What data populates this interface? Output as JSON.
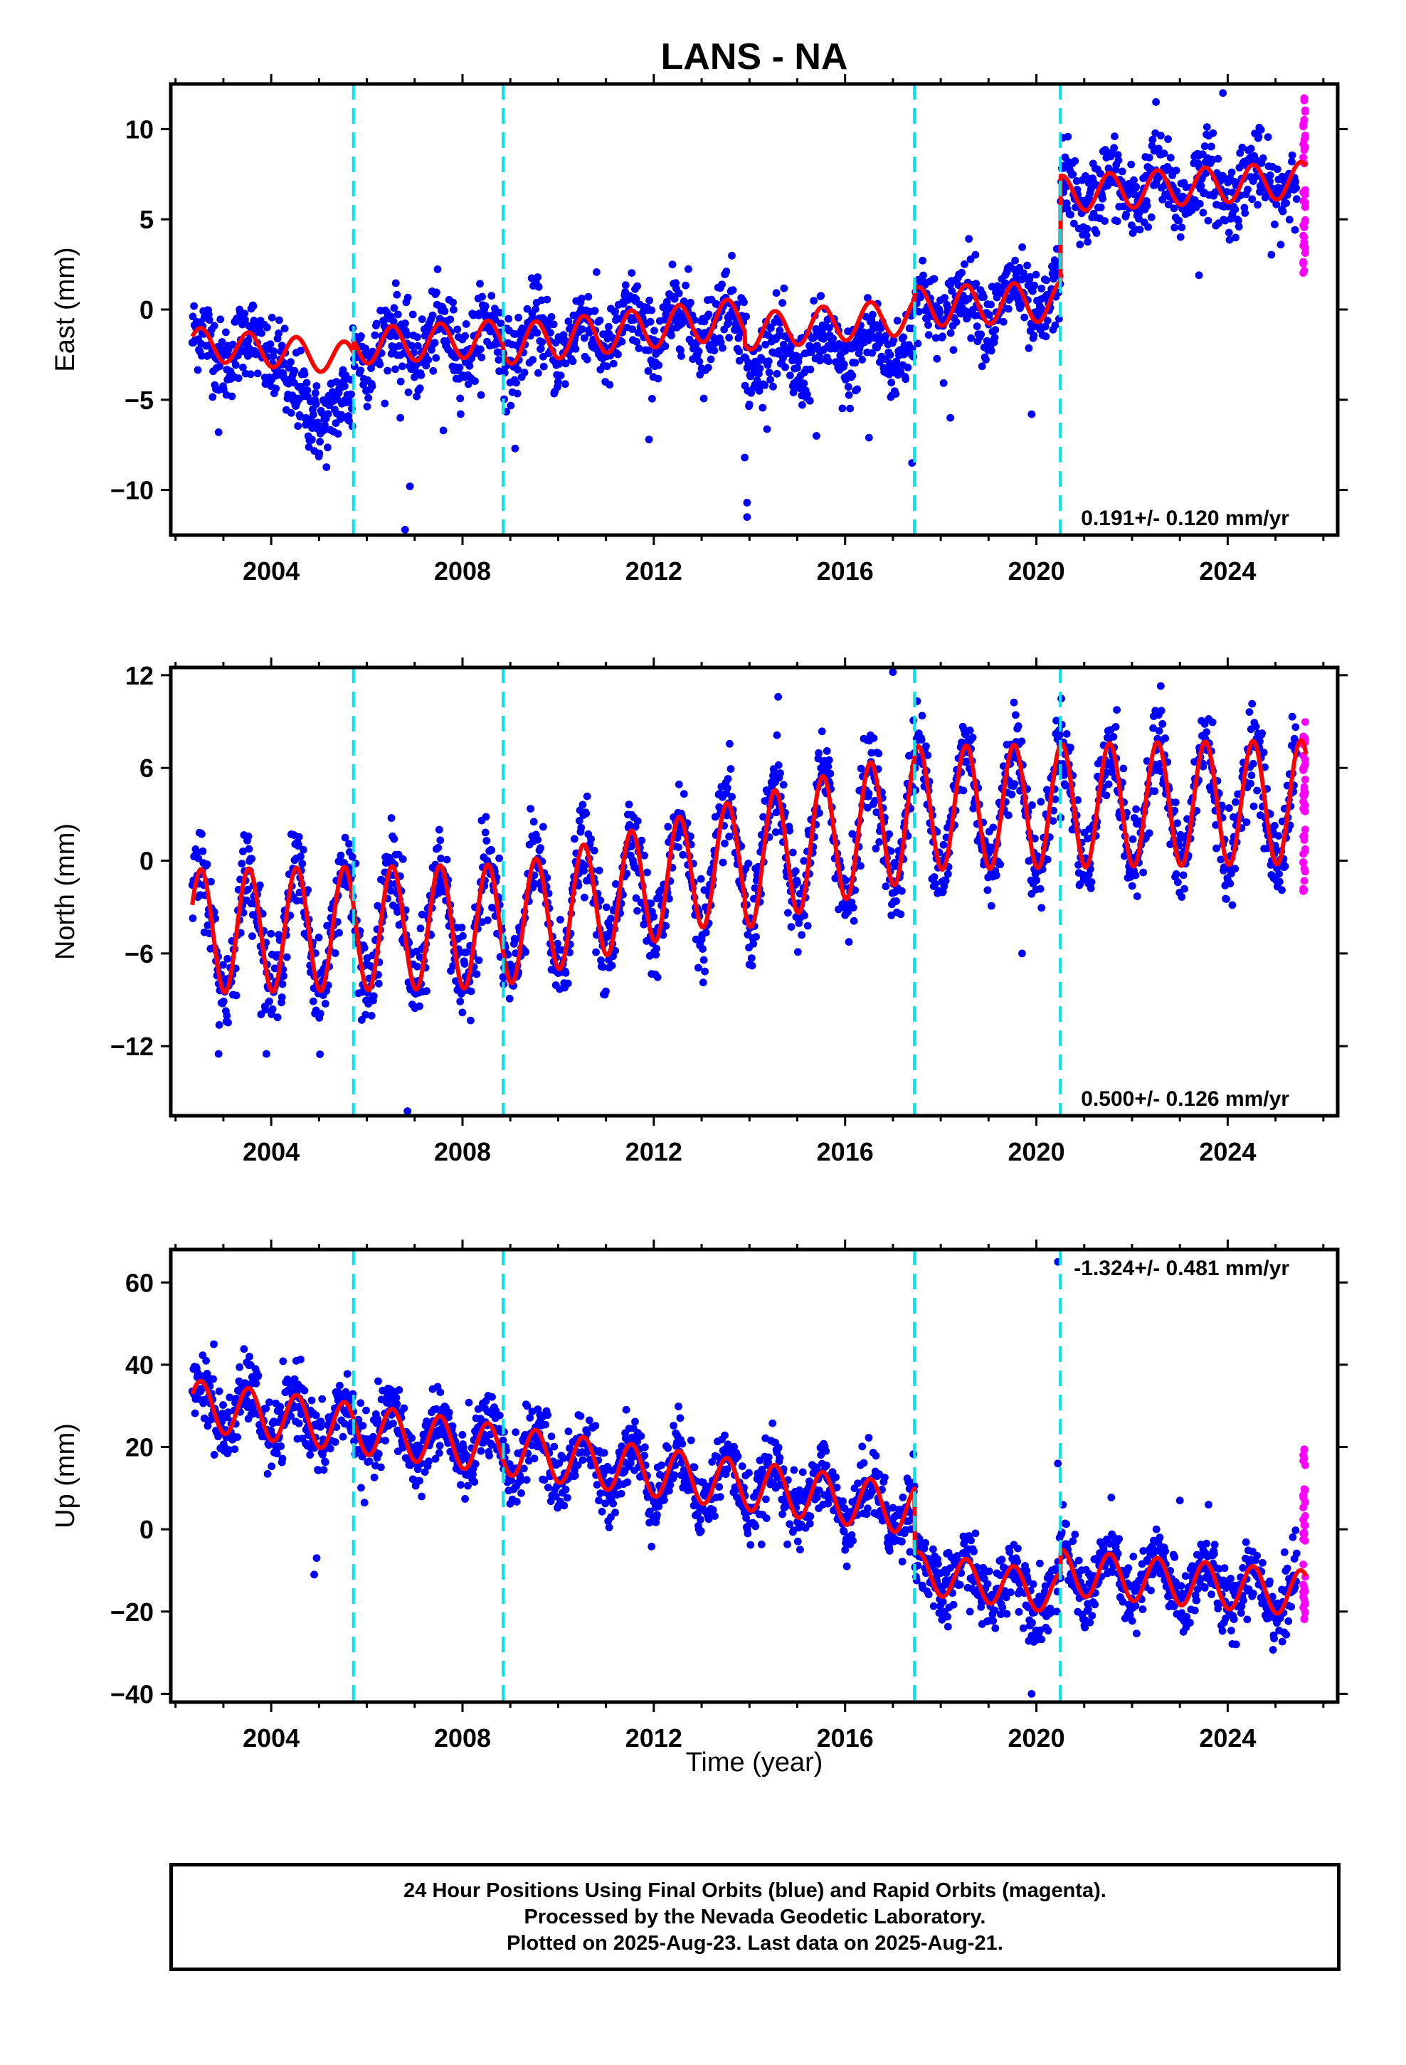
{
  "chart_data": {
    "title": "LANS - NA",
    "x_range": [
      2001.9,
      2026.3
    ],
    "x_ticks": [
      2004,
      2008,
      2012,
      2016,
      2020,
      2024
    ],
    "xlabel": "Time (year)",
    "offsets": [
      2005.72,
      2008.85,
      2017.45,
      2020.5
    ],
    "last_final": 2025.45,
    "last_data": 2025.64,
    "colors": {
      "final": "#0000ff",
      "rapid": "#ff00ff",
      "model": "#ff0000",
      "offset_line": "#00e5ee"
    },
    "panels": [
      {
        "type": "scatter",
        "name": "east",
        "ylabel": "East (mm)",
        "ylim": [
          -12.5,
          12.5
        ],
        "yticks": [
          10,
          5,
          0,
          -5,
          -10
        ],
        "rate": "0.191+/- 0.120 mm/yr",
        "rate_pos": "bottom-right",
        "noise": 1.1,
        "rapid_range": [
          1.8,
          12
        ],
        "segments": [
          {
            "start": 2002.35,
            "end": 2005.72,
            "level": -2.3,
            "slope": -0.25,
            "amp": 0.9
          },
          {
            "start": 2005.72,
            "end": 2008.85,
            "level": -1.8,
            "slope": 0.15,
            "amp": 1.0
          },
          {
            "start": 2008.85,
            "end": 2013.9,
            "level": -1.2,
            "slope": 0.3,
            "amp": 1.1
          },
          {
            "start": 2013.9,
            "end": 2017.45,
            "level": -0.8,
            "slope": 0.25,
            "amp": 1.0
          },
          {
            "start": 2017.45,
            "end": 2020.5,
            "level": 0.3,
            "slope": 0.1,
            "amp": 1.1
          },
          {
            "start": 2020.5,
            "end": 2025.64,
            "level": 6.8,
            "slope": 0.15,
            "amp": 1.0
          }
        ],
        "dips": [
          {
            "start": 2004.3,
            "end": 2005.7,
            "depth": -3.0
          },
          {
            "start": 2013.95,
            "end": 2017.45,
            "depth": -1.6
          }
        ],
        "outliers": [
          [
            2002.9,
            -6.8
          ],
          [
            2004.85,
            -7.2
          ],
          [
            2006.7,
            -6.0
          ],
          [
            2006.8,
            -12.2
          ],
          [
            2006.9,
            -9.8
          ],
          [
            2007.6,
            -6.7
          ],
          [
            2009.1,
            -7.7
          ],
          [
            2011.9,
            -7.2
          ],
          [
            2013.9,
            -8.2
          ],
          [
            2013.95,
            -11.5
          ],
          [
            2013.95,
            -10.7
          ],
          [
            2015.4,
            -7.0
          ],
          [
            2016.5,
            -7.1
          ],
          [
            2017.4,
            -8.5
          ],
          [
            2018.2,
            -6.0
          ],
          [
            2019.9,
            -5.8
          ],
          [
            2023.4,
            1.9
          ],
          [
            2023.9,
            12.0
          ],
          [
            2022.5,
            11.5
          ]
        ]
      },
      {
        "type": "scatter",
        "name": "north",
        "ylabel": "North (mm)",
        "ylim": [
          -16.5,
          12.5
        ],
        "yticks": [
          12,
          6,
          0,
          -6,
          -12
        ],
        "rate": "0.500+/- 0.126 mm/yr",
        "rate_pos": "bottom-right",
        "noise": 1.4,
        "rapid_range": [
          -2,
          9
        ],
        "segments": [
          {
            "start": 2002.35,
            "end": 2008.85,
            "level": -4.4,
            "slope": 0.05,
            "amp": 4.0
          },
          {
            "start": 2008.85,
            "end": 2013.9,
            "level": -2.0,
            "slope": 0.9,
            "amp": 3.8
          },
          {
            "start": 2013.9,
            "end": 2017.45,
            "level": 1.4,
            "slope": 0.9,
            "amp": 4.2
          },
          {
            "start": 2017.45,
            "end": 2025.64,
            "level": 3.6,
            "slope": 0.05,
            "amp": 4.0
          }
        ],
        "dips": [],
        "outliers": [
          [
            2002.9,
            -12.5
          ],
          [
            2003.9,
            -12.5
          ],
          [
            2006.85,
            -16.2
          ],
          [
            2019.7,
            -6.0
          ],
          [
            2017.0,
            12.2
          ],
          [
            2014.6,
            10.6
          ],
          [
            2022.6,
            11.3
          ],
          [
            2008.4,
            2.6
          ]
        ]
      },
      {
        "type": "scatter",
        "name": "up",
        "ylabel": "Up (mm)",
        "ylim": [
          -42,
          68
        ],
        "yticks": [
          60,
          40,
          20,
          0,
          -20,
          -40
        ],
        "rate": "-1.324+/- 0.481 mm/yr",
        "rate_pos": "top-right",
        "noise": 4.2,
        "rapid_range": [
          -22,
          20
        ],
        "segments": [
          {
            "start": 2002.35,
            "end": 2017.45,
            "level": 17.5,
            "slope": -1.7,
            "amp": 6.0
          },
          {
            "start": 2017.45,
            "end": 2020.5,
            "level": -13.0,
            "slope": -1.7,
            "amp": 5.0
          },
          {
            "start": 2020.5,
            "end": 2025.64,
            "level": -13.0,
            "slope": -1.0,
            "amp": 5.5
          }
        ],
        "dips": [],
        "outliers": [
          [
            2002.8,
            45
          ],
          [
            2003.6,
            37
          ],
          [
            2004.9,
            -11
          ],
          [
            2004.95,
            -7
          ],
          [
            2007.6,
            29
          ],
          [
            2020.45,
            65
          ],
          [
            2020.45,
            16
          ],
          [
            2019.9,
            -40
          ],
          [
            2023.0,
            7
          ],
          [
            2023.6,
            6
          ]
        ]
      }
    ]
  },
  "caption": {
    "line1": "24 Hour Positions Using Final Orbits (blue) and Rapid Orbits (magenta).",
    "line2": "Processed by the Nevada Geodetic Laboratory.",
    "line3": "Plotted on 2025-Aug-23. Last data on 2025-Aug-21."
  }
}
